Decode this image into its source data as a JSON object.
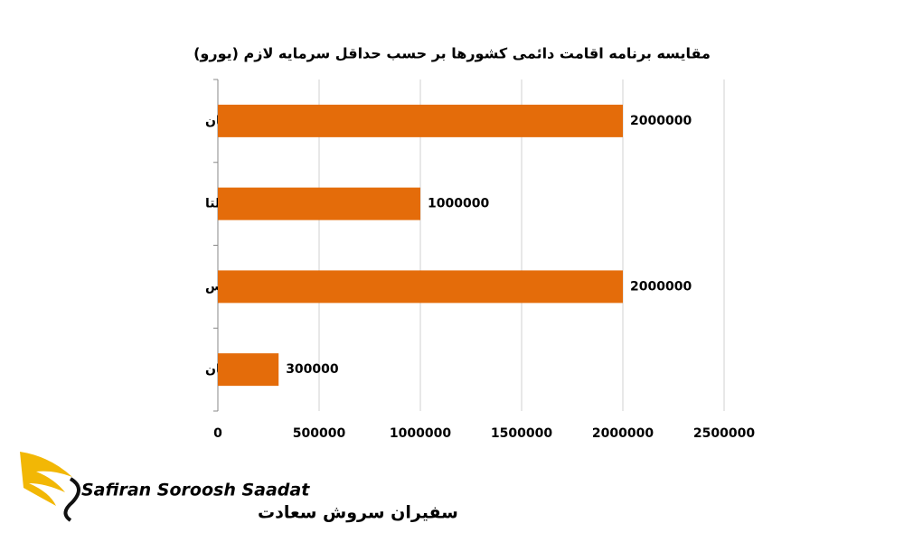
{
  "chart_data": {
    "type": "bar",
    "orientation": "horizontal",
    "title": "مقایسه برنامه اقامت دائمی کشورها بر حسب حداقل سرمایه لازم (یورو)",
    "categories": [
      "انگلستان",
      "مالتا",
      "قبرس",
      "مجارستان"
    ],
    "values": [
      2000000,
      1000000,
      2000000,
      300000
    ],
    "color": "#e46c0a",
    "xlim": [
      0,
      2500000
    ],
    "xticks": [
      0,
      500000,
      1000000,
      1500000,
      2000000,
      2500000
    ],
    "grid": true
  },
  "logo": {
    "latin": "Safiran Soroosh Saadat",
    "persian": "سفیران سروش سعادت"
  }
}
